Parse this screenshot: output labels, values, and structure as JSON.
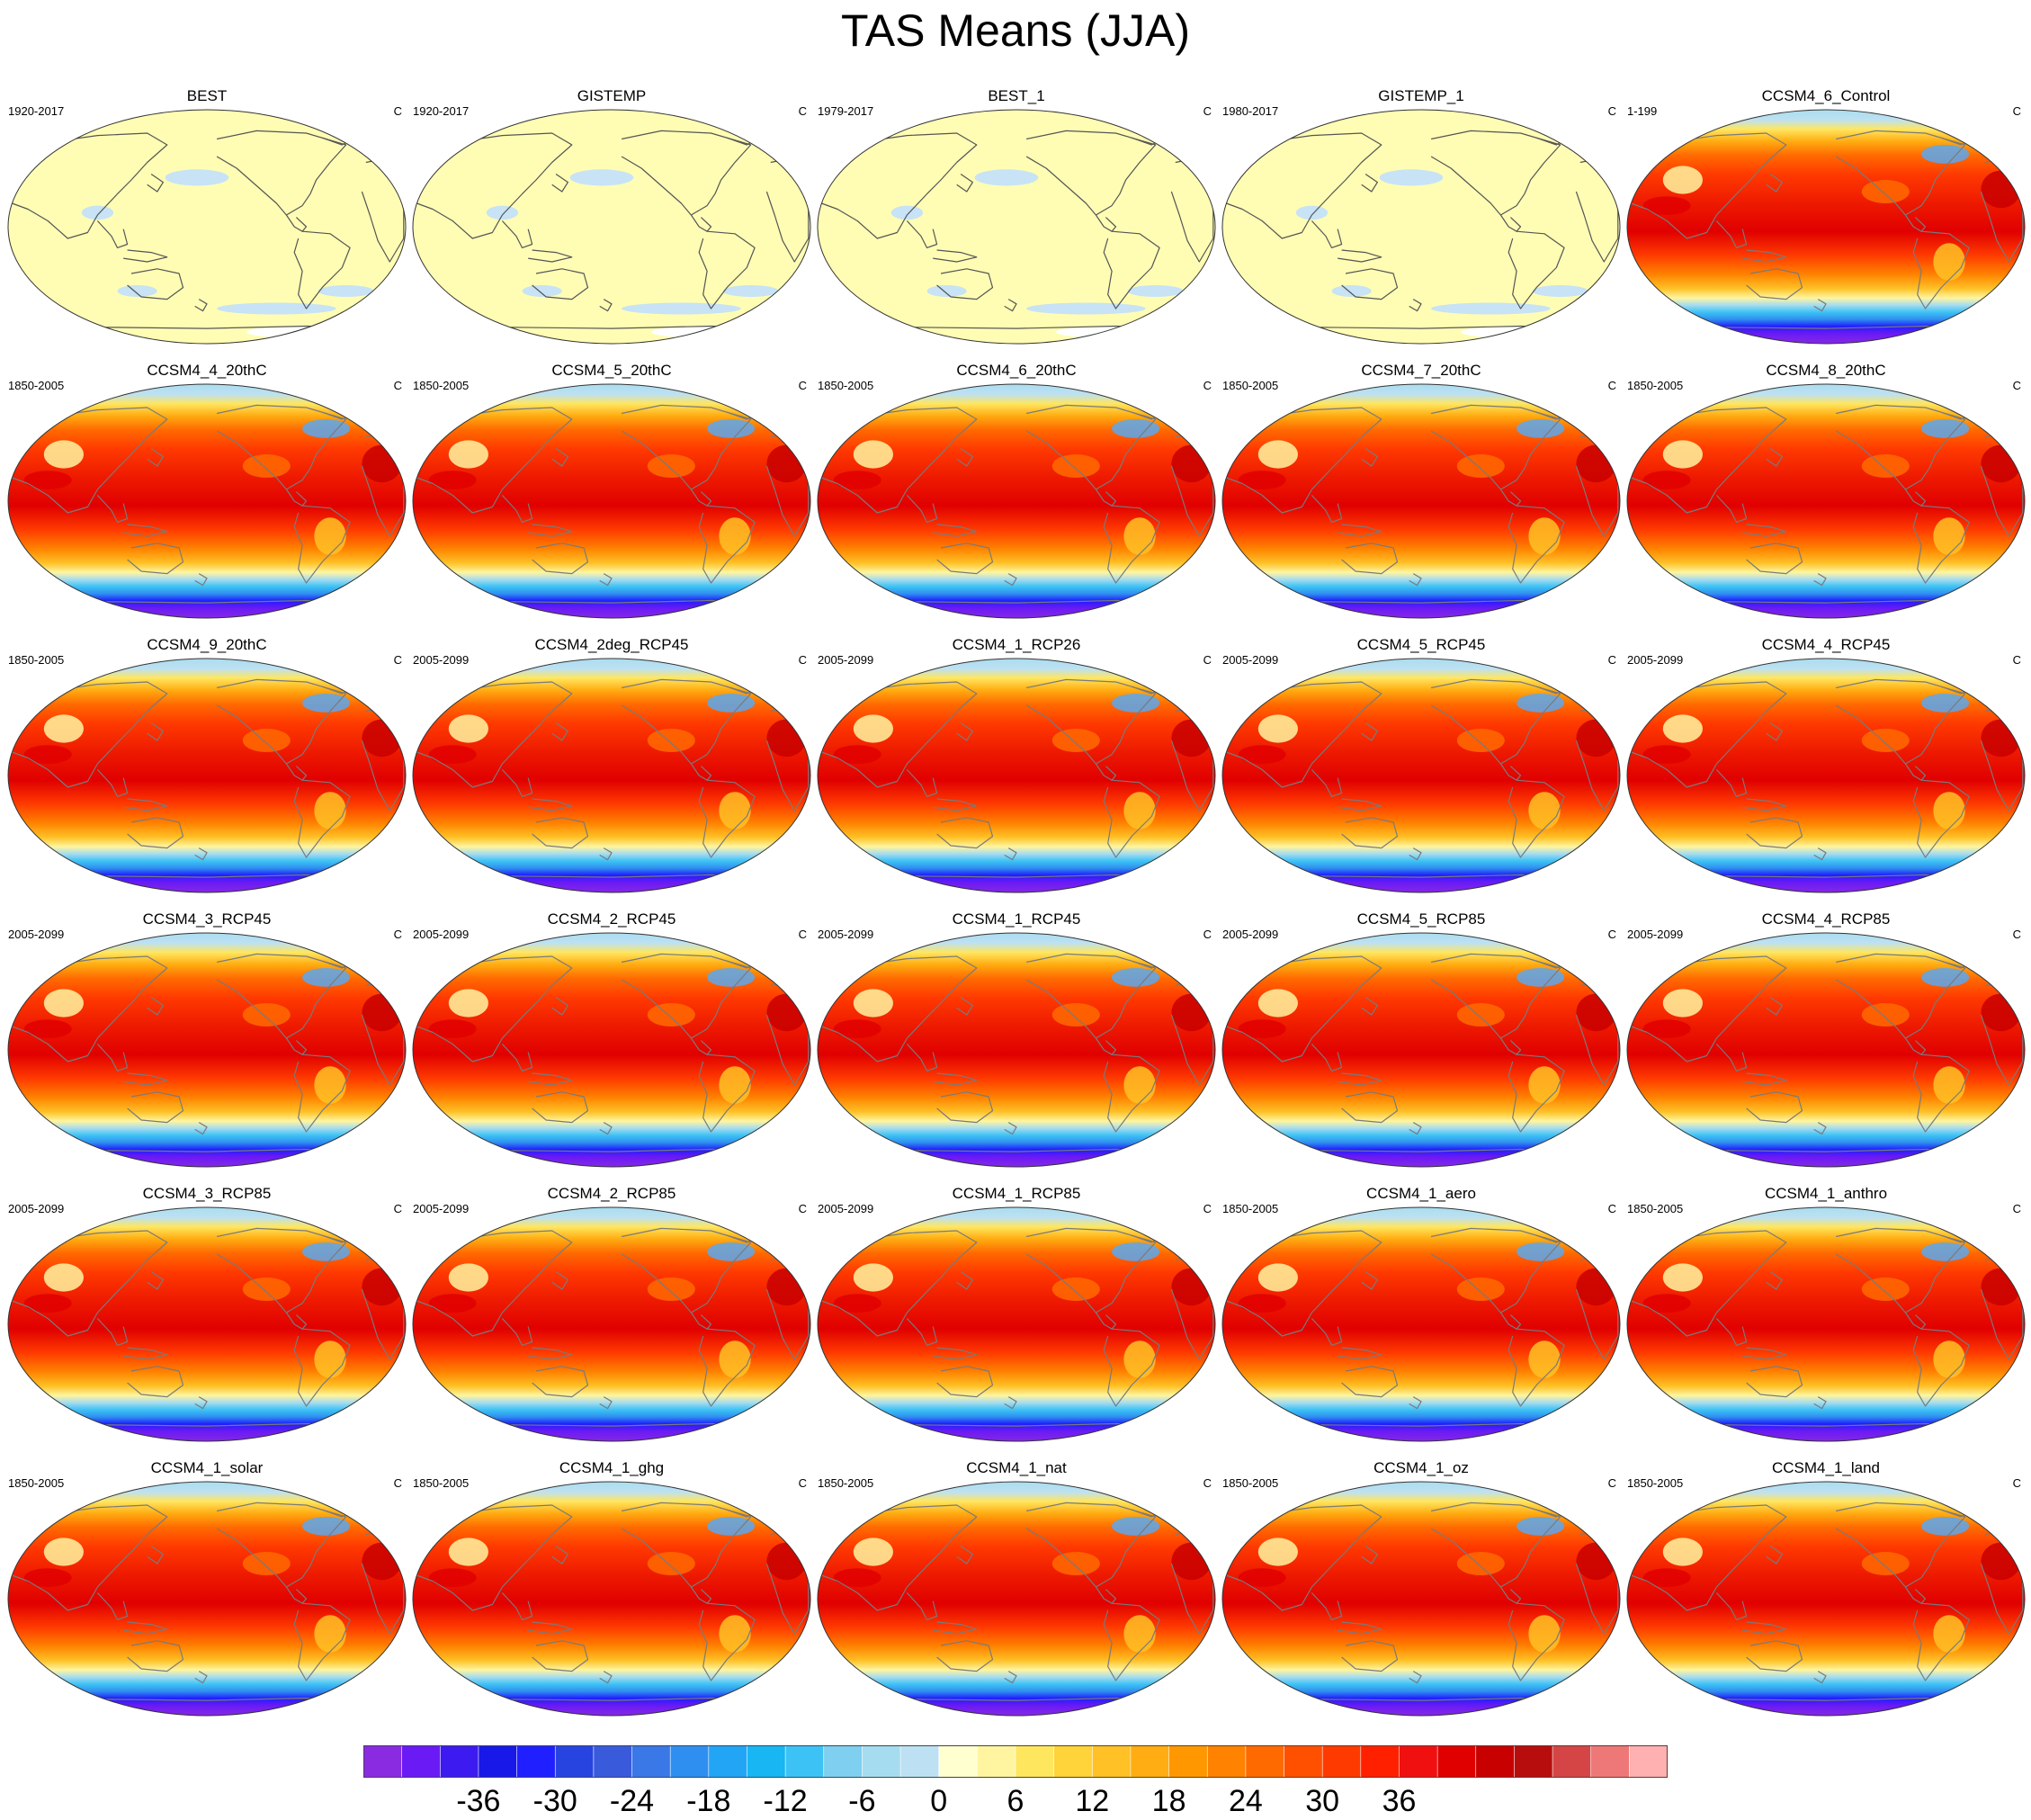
{
  "title": "TAS Means (JJA)",
  "chart_data": {
    "type": "heatmap",
    "title": "TAS Means (JJA)",
    "variable": "surface air temperature mean",
    "season": "JJA",
    "units": "C",
    "projection": "Robinson, Pacific-centered",
    "colorbar": {
      "levels": [
        -36,
        -33,
        -30,
        -27,
        -24,
        -21,
        -18,
        -15,
        -12,
        -9,
        -6,
        -3,
        0,
        3,
        6,
        9,
        12,
        15,
        18,
        21,
        24,
        27,
        30,
        33,
        36,
        39
      ],
      "tick_labels": [
        "-36",
        "-30",
        "-24",
        "-18",
        "-12",
        "-6",
        "0",
        "6",
        "12",
        "18",
        "24",
        "30",
        "36"
      ],
      "colors": [
        "#8a2be2",
        "#6a1af5",
        "#3d1af0",
        "#1818e8",
        "#1f1fff",
        "#2844e0",
        "#3a5adc",
        "#3a78e8",
        "#2f8ff0",
        "#22a5f5",
        "#18b6f2",
        "#3dc2f5",
        "#7fcff0",
        "#a6dcef",
        "#bde1f2",
        "#ffffd0",
        "#fff5a0",
        "#ffe65f",
        "#ffd33a",
        "#ffc126",
        "#ffad12",
        "#ff9800",
        "#ff8200",
        "#ff6a00",
        "#ff5000",
        "#ff3a00",
        "#ff2000",
        "#f01010",
        "#e00000",
        "#c80000",
        "#b80d0d",
        "#d64545",
        "#ee7878",
        "#ffb0b0"
      ],
      "colormap_ramp": "purple-blue-cyan-pale yellow-yellow-orange-red-pink"
    },
    "panels": [
      {
        "name": "BEST",
        "period": "1920-2017",
        "units": "C",
        "field": "anomaly_near_zero"
      },
      {
        "name": "GISTEMP",
        "period": "1920-2017",
        "units": "C",
        "field": "anomaly_near_zero"
      },
      {
        "name": "BEST_1",
        "period": "1979-2017",
        "units": "C",
        "field": "anomaly_near_zero"
      },
      {
        "name": "GISTEMP_1",
        "period": "1980-2017",
        "units": "C",
        "field": "anomaly_near_zero"
      },
      {
        "name": "CCSM4_6_Control",
        "period": "1-199",
        "units": "C",
        "field": "climatology"
      },
      {
        "name": "CCSM4_4_20thC",
        "period": "1850-2005",
        "units": "C",
        "field": "climatology"
      },
      {
        "name": "CCSM4_5_20thC",
        "period": "1850-2005",
        "units": "C",
        "field": "climatology"
      },
      {
        "name": "CCSM4_6_20thC",
        "period": "1850-2005",
        "units": "C",
        "field": "climatology"
      },
      {
        "name": "CCSM4_7_20thC",
        "period": "1850-2005",
        "units": "C",
        "field": "climatology"
      },
      {
        "name": "CCSM4_8_20thC",
        "period": "1850-2005",
        "units": "C",
        "field": "climatology"
      },
      {
        "name": "CCSM4_9_20thC",
        "period": "1850-2005",
        "units": "C",
        "field": "climatology"
      },
      {
        "name": "CCSM4_2deg_RCP45",
        "period": "2005-2099",
        "units": "C",
        "field": "climatology"
      },
      {
        "name": "CCSM4_1_RCP26",
        "period": "2005-2099",
        "units": "C",
        "field": "climatology"
      },
      {
        "name": "CCSM4_5_RCP45",
        "period": "2005-2099",
        "units": "C",
        "field": "climatology"
      },
      {
        "name": "CCSM4_4_RCP45",
        "period": "2005-2099",
        "units": "C",
        "field": "climatology"
      },
      {
        "name": "CCSM4_3_RCP45",
        "period": "2005-2099",
        "units": "C",
        "field": "climatology"
      },
      {
        "name": "CCSM4_2_RCP45",
        "period": "2005-2099",
        "units": "C",
        "field": "climatology"
      },
      {
        "name": "CCSM4_1_RCP45",
        "period": "2005-2099",
        "units": "C",
        "field": "climatology"
      },
      {
        "name": "CCSM4_5_RCP85",
        "period": "2005-2099",
        "units": "C",
        "field": "climatology"
      },
      {
        "name": "CCSM4_4_RCP85",
        "period": "2005-2099",
        "units": "C",
        "field": "climatology"
      },
      {
        "name": "CCSM4_3_RCP85",
        "period": "2005-2099",
        "units": "C",
        "field": "climatology"
      },
      {
        "name": "CCSM4_2_RCP85",
        "period": "2005-2099",
        "units": "C",
        "field": "climatology"
      },
      {
        "name": "CCSM4_1_RCP85",
        "period": "2005-2099",
        "units": "C",
        "field": "climatology"
      },
      {
        "name": "CCSM4_1_aero",
        "period": "1850-2005",
        "units": "C",
        "field": "climatology"
      },
      {
        "name": "CCSM4_1_anthro",
        "period": "1850-2005",
        "units": "C",
        "field": "climatology"
      },
      {
        "name": "CCSM4_1_solar",
        "period": "1850-2005",
        "units": "C",
        "field": "climatology"
      },
      {
        "name": "CCSM4_1_ghg",
        "period": "1850-2005",
        "units": "C",
        "field": "climatology"
      },
      {
        "name": "CCSM4_1_nat",
        "period": "1850-2005",
        "units": "C",
        "field": "climatology"
      },
      {
        "name": "CCSM4_1_oz",
        "period": "1850-2005",
        "units": "C",
        "field": "climatology"
      },
      {
        "name": "CCSM4_1_land",
        "period": "1850-2005",
        "units": "C",
        "field": "climatology"
      }
    ]
  }
}
